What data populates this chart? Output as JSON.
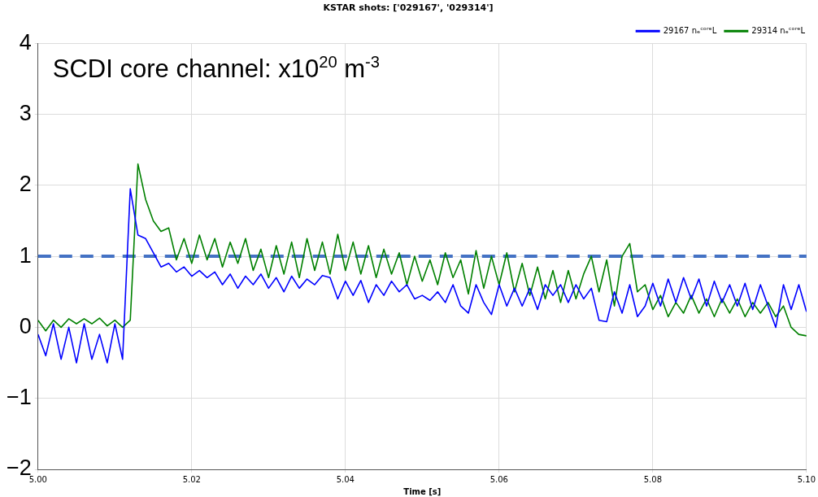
{
  "chart_data": {
    "type": "line",
    "title": "KSTAR shots: ['029167', '029314']",
    "xlabel": "Time [s]",
    "annotations": [
      "SCDI core channel: x10$^{20}$ m$^{-3}$"
    ],
    "x": [
      5.0,
      5.001,
      5.002,
      5.003,
      5.004,
      5.005,
      5.006,
      5.007,
      5.008,
      5.009,
      5.01,
      5.011,
      5.012,
      5.013,
      5.014,
      5.015,
      5.016,
      5.017,
      5.018,
      5.019,
      5.02,
      5.021,
      5.022,
      5.023,
      5.024,
      5.025,
      5.026,
      5.027,
      5.028,
      5.029,
      5.03,
      5.031,
      5.032,
      5.033,
      5.034,
      5.035,
      5.036,
      5.037,
      5.038,
      5.039,
      5.04,
      5.041,
      5.042,
      5.043,
      5.044,
      5.045,
      5.046,
      5.047,
      5.048,
      5.049,
      5.05,
      5.051,
      5.052,
      5.053,
      5.054,
      5.055,
      5.056,
      5.057,
      5.058,
      5.059,
      5.06,
      5.061,
      5.062,
      5.063,
      5.064,
      5.065,
      5.066,
      5.067,
      5.068,
      5.069,
      5.07,
      5.071,
      5.072,
      5.073,
      5.074,
      5.075,
      5.076,
      5.077,
      5.078,
      5.079,
      5.08,
      5.081,
      5.082,
      5.083,
      5.084,
      5.085,
      5.086,
      5.087,
      5.088,
      5.089,
      5.09,
      5.091,
      5.092,
      5.093,
      5.094,
      5.095,
      5.096,
      5.097,
      5.098,
      5.099,
      5.1
    ],
    "series": [
      {
        "name": "29167 nₑᶜᵒʳᵉL",
        "color": "#0000ff",
        "values": [
          -0.1,
          -0.4,
          0.05,
          -0.45,
          0.0,
          -0.5,
          0.05,
          -0.45,
          -0.1,
          -0.5,
          0.05,
          -0.45,
          1.95,
          1.3,
          1.25,
          1.05,
          0.85,
          0.9,
          0.78,
          0.85,
          0.72,
          0.8,
          0.7,
          0.78,
          0.6,
          0.75,
          0.55,
          0.72,
          0.6,
          0.75,
          0.55,
          0.7,
          0.5,
          0.72,
          0.55,
          0.68,
          0.6,
          0.73,
          0.7,
          0.4,
          0.65,
          0.45,
          0.66,
          0.35,
          0.6,
          0.45,
          0.65,
          0.5,
          0.6,
          0.4,
          0.45,
          0.38,
          0.5,
          0.35,
          0.6,
          0.3,
          0.2,
          0.6,
          0.35,
          0.18,
          0.6,
          0.3,
          0.55,
          0.3,
          0.55,
          0.25,
          0.6,
          0.45,
          0.6,
          0.35,
          0.6,
          0.4,
          0.55,
          0.1,
          0.08,
          0.5,
          0.2,
          0.6,
          0.15,
          0.3,
          0.62,
          0.3,
          0.68,
          0.35,
          0.7,
          0.4,
          0.68,
          0.3,
          0.65,
          0.35,
          0.6,
          0.3,
          0.62,
          0.25,
          0.6,
          0.3,
          0.0,
          0.6,
          0.25,
          0.6,
          0.22
        ]
      },
      {
        "name": "29314 nₑᶜᵒʳᵉL",
        "color": "#008000",
        "values": [
          0.1,
          -0.05,
          0.1,
          0.0,
          0.12,
          0.05,
          0.12,
          0.05,
          0.13,
          0.02,
          0.1,
          0.0,
          0.1,
          2.3,
          1.8,
          1.5,
          1.35,
          1.4,
          0.95,
          1.25,
          0.9,
          1.3,
          0.95,
          1.25,
          0.85,
          1.2,
          0.9,
          1.25,
          0.8,
          1.1,
          0.7,
          1.15,
          0.75,
          1.2,
          0.7,
          1.25,
          0.8,
          1.2,
          0.75,
          1.31,
          0.8,
          1.2,
          0.75,
          1.15,
          0.7,
          1.1,
          0.75,
          1.05,
          0.6,
          1.0,
          0.65,
          0.95,
          0.6,
          1.05,
          0.7,
          0.95,
          0.47,
          1.08,
          0.55,
          1.0,
          0.6,
          1.05,
          0.5,
          0.9,
          0.45,
          0.85,
          0.4,
          0.8,
          0.35,
          0.8,
          0.4,
          0.75,
          1.0,
          0.5,
          0.95,
          0.3,
          1.0,
          1.18,
          0.5,
          0.6,
          0.25,
          0.45,
          0.15,
          0.35,
          0.2,
          0.45,
          0.2,
          0.4,
          0.15,
          0.4,
          0.2,
          0.4,
          0.15,
          0.35,
          0.2,
          0.35,
          0.15,
          0.3,
          0.0,
          -0.1,
          -0.12
        ]
      }
    ],
    "xlim": [
      5.0,
      5.1
    ],
    "xticks": [
      {
        "value": 5.0,
        "label": "5.00"
      },
      {
        "value": 5.02,
        "label": "5.02"
      },
      {
        "value": 5.04,
        "label": "5.04"
      },
      {
        "value": 5.06,
        "label": "5.06"
      },
      {
        "value": 5.08,
        "label": "5.08"
      },
      {
        "value": 5.1,
        "label": "5.10"
      }
    ],
    "ylim": [
      -2,
      4
    ],
    "yticks": [
      {
        "value": -2,
        "label": "−2"
      },
      {
        "value": -1,
        "label": "−1"
      },
      0,
      1,
      2,
      3,
      4
    ],
    "ref_lines": [
      {
        "axis": "y",
        "value": 1,
        "color": "#4472c4",
        "line_style": "dashed"
      }
    ],
    "grid": true,
    "legend": "top right",
    "line_style": "solid",
    "marker": "none"
  }
}
